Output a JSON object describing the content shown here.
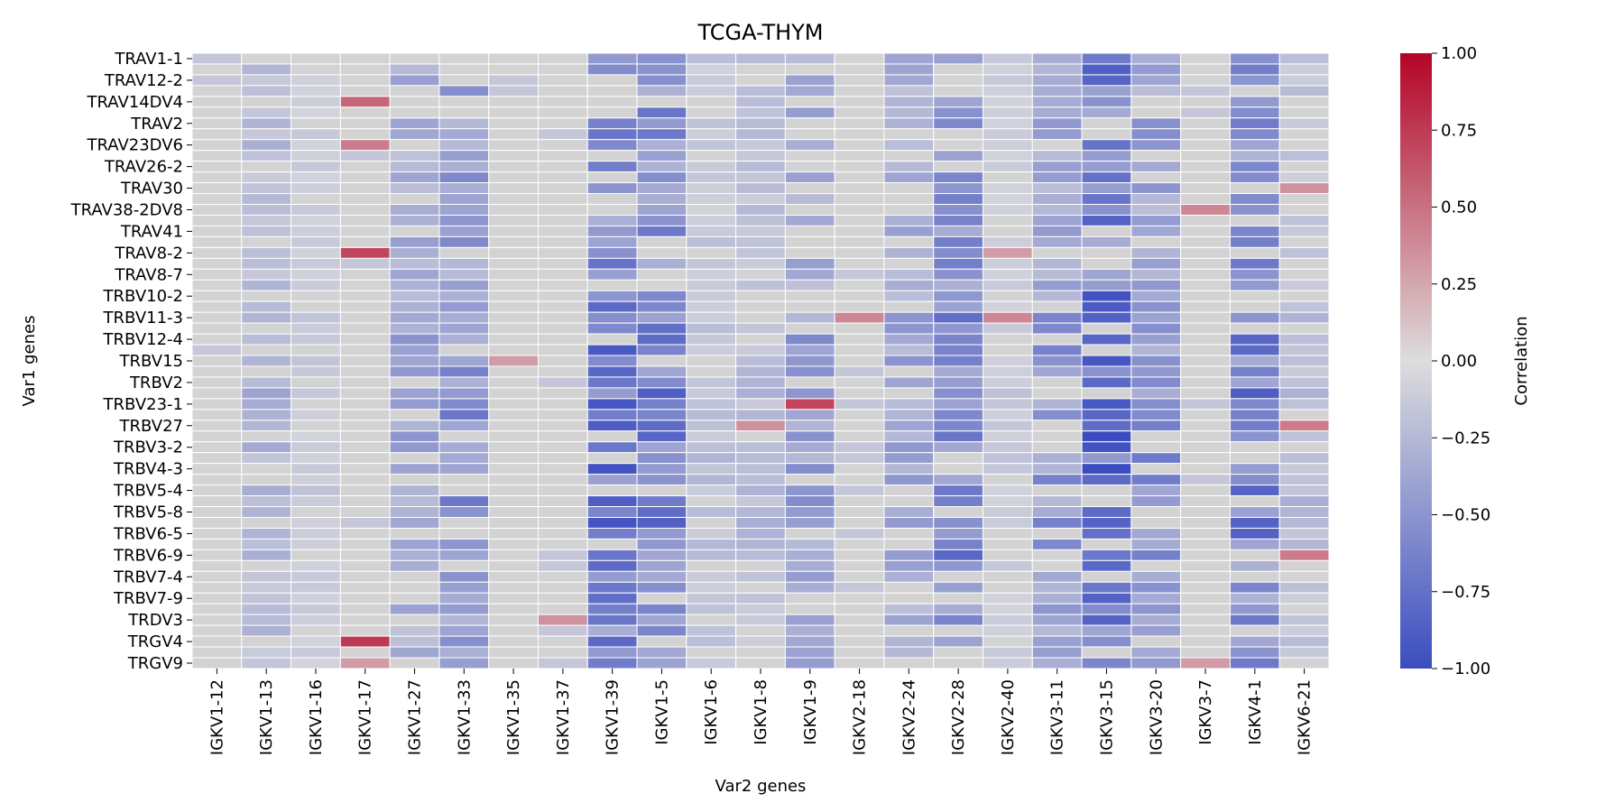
{
  "chart_data": {
    "type": "heatmap",
    "title": "TCGA-THYM",
    "xlabel": "Var2 genes",
    "ylabel": "Var1 genes",
    "x_categories": [
      "IGKV1-12",
      "IGKV1-13",
      "IGKV1-16",
      "IGKV1-17",
      "IGKV1-27",
      "IGKV1-33",
      "IGKV1-35",
      "IGKV1-37",
      "IGKV1-39",
      "IGKV1-5",
      "IGKV1-6",
      "IGKV1-8",
      "IGKV1-9",
      "IGKV2-18",
      "IGKV2-24",
      "IGKV2-28",
      "IGKV2-40",
      "IGKV3-11",
      "IGKV3-15",
      "IGKV3-20",
      "IGKV3-7",
      "IGKV4-1",
      "IGKV6-21"
    ],
    "y_tick_labels": [
      "TRAV1-1",
      "TRAV12-2",
      "TRAV14DV4",
      "TRAV2",
      "TRAV23DV6",
      "TRAV26-2",
      "TRAV30",
      "TRAV38-2DV8",
      "TRAV41",
      "TRAV8-2",
      "TRAV8-7",
      "TRBV10-2",
      "TRBV11-3",
      "TRBV12-4",
      "TRBV15",
      "TRBV2",
      "TRBV23-1",
      "TRBV27",
      "TRBV3-2",
      "TRBV4-3",
      "TRBV5-4",
      "TRBV5-8",
      "TRBV6-5",
      "TRBV6-9",
      "TRBV7-4",
      "TRBV7-9",
      "TRDV3",
      "TRGV4",
      "TRGV9"
    ],
    "y_row_count": 57,
    "column_base_values": [
      0,
      -0.22,
      -0.1,
      0,
      -0.3,
      -0.4,
      0,
      0,
      -0.55,
      -0.5,
      -0.15,
      -0.18,
      -0.32,
      0,
      -0.3,
      -0.45,
      -0.1,
      -0.35,
      -0.6,
      -0.38,
      0,
      -0.5,
      -0.18
    ],
    "highlights": [
      {
        "x": "IGKV1-17",
        "y": "TRAV14DV4",
        "value": 0.55
      },
      {
        "x": "IGKV1-17",
        "y": "TRAV23DV6",
        "value": 0.45
      },
      {
        "x": "IGKV1-17",
        "y": "TRAV8-2",
        "value": 0.7
      },
      {
        "x": "IGKV1-17",
        "y": "TRGV4",
        "value": 0.75
      },
      {
        "x": "IGKV1-17",
        "y": "TRGV9",
        "value": 0.3
      },
      {
        "x": "IGKV1-35",
        "y": "TRBV15",
        "value": 0.3
      },
      {
        "x": "IGKV1-37",
        "y": "TRDV3",
        "value": 0.35
      },
      {
        "x": "IGKV1-8",
        "y": "TRBV27",
        "value": 0.35
      },
      {
        "x": "IGKV1-9",
        "y": "TRBV23-1",
        "value": 0.7
      },
      {
        "x": "IGKV2-18",
        "y": "TRBV11-3",
        "value": 0.4
      },
      {
        "x": "IGKV2-40",
        "y": "TRAV8-2",
        "value": 0.3
      },
      {
        "x": "IGKV2-40",
        "y": "TRBV11-3",
        "value": 0.4
      },
      {
        "x": "IGKV3-7",
        "y": "TRAV38-2DV8",
        "value": 0.4
      },
      {
        "x": "IGKV3-7",
        "y": "TRGV9",
        "value": 0.3
      },
      {
        "x": "IGKV6-21",
        "y": "TRAV30",
        "value": 0.35
      },
      {
        "x": "IGKV6-21",
        "y": "TRBV27",
        "value": 0.45
      },
      {
        "x": "IGKV6-21",
        "y": "TRBV6-9",
        "value": 0.45
      }
    ],
    "colorbar": {
      "label": "Correlation",
      "range": [
        -1,
        1
      ],
      "ticks": [
        "1.00",
        "0.75",
        "0.50",
        "0.25",
        "0.00",
        "−0.25",
        "−0.50",
        "−0.75",
        "−1.00"
      ],
      "colormap": "coolwarm",
      "colors": {
        "neg": "#3b4cc0",
        "mid": "#dddddd",
        "pos": "#b40426",
        "zero_cell": "#d3d3d3",
        "gridline": "#ffffff"
      }
    }
  }
}
